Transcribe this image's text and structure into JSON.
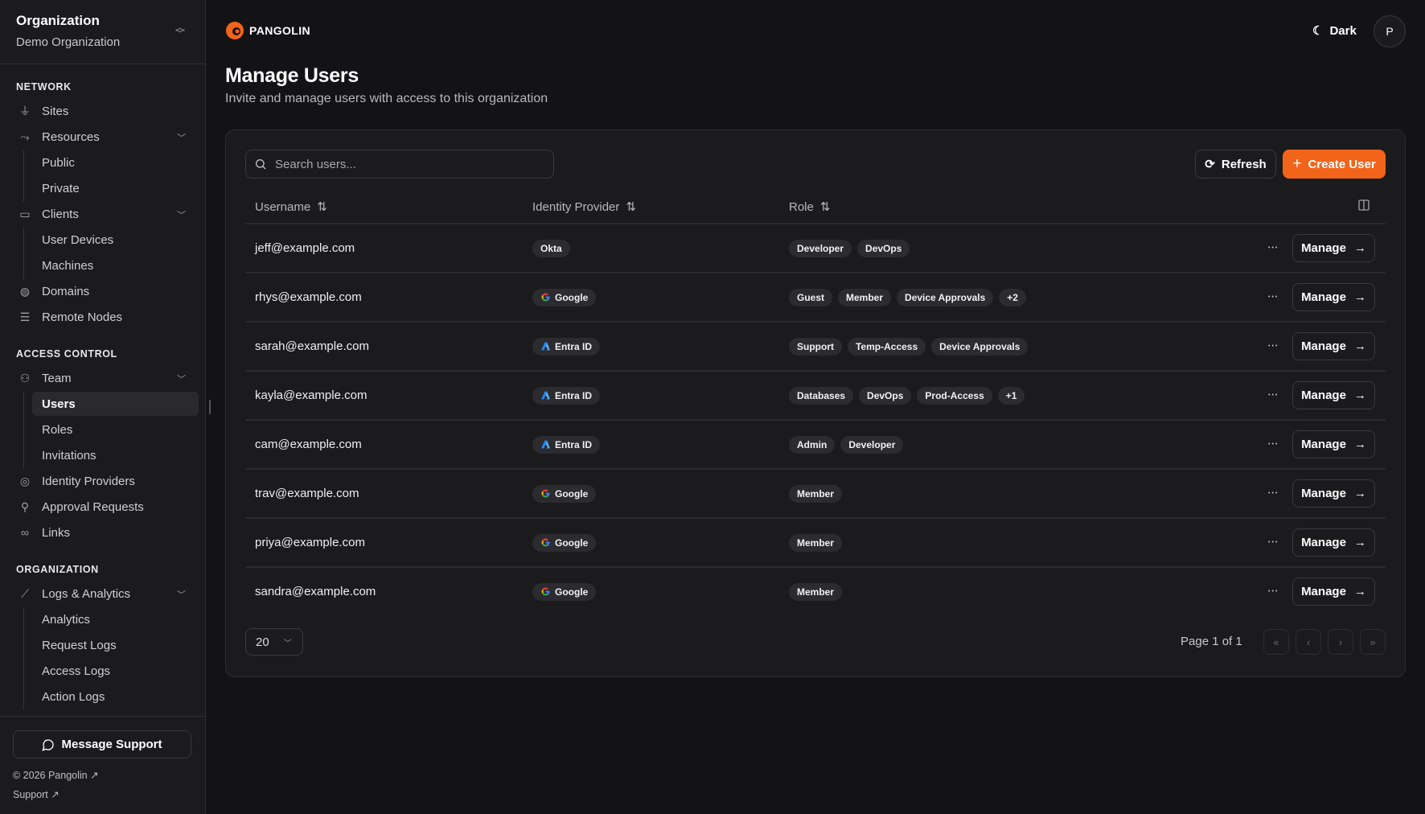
{
  "sidebar": {
    "org_title": "Organization",
    "org_name": "Demo Organization",
    "sections": [
      {
        "label": "NETWORK",
        "items": [
          {
            "label": "Sites",
            "icon": "plug-icon"
          },
          {
            "label": "Resources",
            "icon": "route-icon",
            "children": [
              "Public",
              "Private"
            ]
          },
          {
            "label": "Clients",
            "icon": "monitor-icon",
            "children": [
              "User Devices",
              "Machines"
            ]
          },
          {
            "label": "Domains",
            "icon": "globe-icon"
          },
          {
            "label": "Remote Nodes",
            "icon": "server-icon"
          }
        ]
      },
      {
        "label": "ACCESS CONTROL",
        "items": [
          {
            "label": "Team",
            "icon": "users-icon",
            "children": [
              "Users",
              "Roles",
              "Invitations"
            ]
          },
          {
            "label": "Identity Providers",
            "icon": "fingerprint-icon"
          },
          {
            "label": "Approval Requests",
            "icon": "user-check-icon"
          },
          {
            "label": "Links",
            "icon": "link-icon"
          }
        ]
      },
      {
        "label": "ORGANIZATION",
        "items": [
          {
            "label": "Logs & Analytics",
            "icon": "chart-icon",
            "children": [
              "Analytics",
              "Request Logs",
              "Access Logs",
              "Action Logs"
            ]
          }
        ]
      }
    ],
    "active_item": "Users",
    "message_support": "Message Support",
    "copyright": "© 2026 Pangolin",
    "support": "Support"
  },
  "header": {
    "brand": "PANGOLIN",
    "theme_label": "Dark",
    "avatar_initial": "P",
    "brand_color": "#f26419"
  },
  "page": {
    "title": "Manage Users",
    "subtitle": "Invite and manage users with access to this organization"
  },
  "toolbar": {
    "search_placeholder": "Search users...",
    "refresh_label": "Refresh",
    "create_label": "Create User"
  },
  "table": {
    "columns": [
      "Username",
      "Identity Provider",
      "Role"
    ],
    "manage_label": "Manage",
    "rows": [
      {
        "username": "jeff@example.com",
        "idp": "Okta",
        "idp_icon": "",
        "roles": [
          "Developer",
          "DevOps"
        ]
      },
      {
        "username": "rhys@example.com",
        "idp": "Google",
        "idp_icon": "google-icon",
        "roles": [
          "Guest",
          "Member",
          "Device Approvals",
          "+2"
        ]
      },
      {
        "username": "sarah@example.com",
        "idp": "Entra ID",
        "idp_icon": "azure-icon",
        "roles": [
          "Support",
          "Temp-Access",
          "Device Approvals"
        ]
      },
      {
        "username": "kayla@example.com",
        "idp": "Entra ID",
        "idp_icon": "azure-icon",
        "roles": [
          "Databases",
          "DevOps",
          "Prod-Access",
          "+1"
        ]
      },
      {
        "username": "cam@example.com",
        "idp": "Entra ID",
        "idp_icon": "azure-icon",
        "roles": [
          "Admin",
          "Developer"
        ]
      },
      {
        "username": "trav@example.com",
        "idp": "Google",
        "idp_icon": "google-icon",
        "roles": [
          "Member"
        ]
      },
      {
        "username": "priya@example.com",
        "idp": "Google",
        "idp_icon": "google-icon",
        "roles": [
          "Member"
        ]
      },
      {
        "username": "sandra@example.com",
        "idp": "Google",
        "idp_icon": "google-icon",
        "roles": [
          "Member"
        ]
      }
    ]
  },
  "pagination": {
    "page_size": "20",
    "page_info": "Page 1 of 1"
  }
}
